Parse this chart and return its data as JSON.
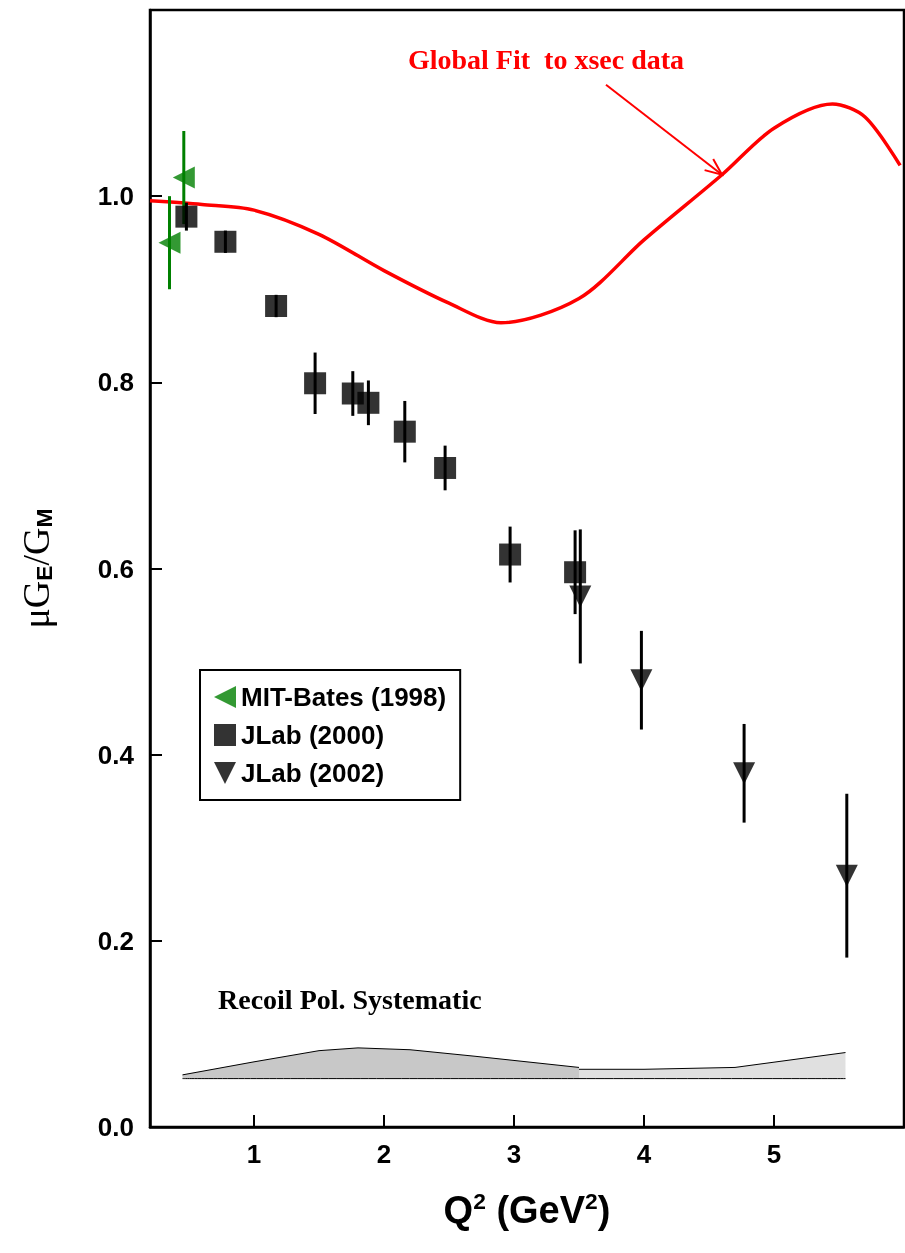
{
  "chart_data": {
    "type": "scatter",
    "xlabel": "Q$^{2}$ (GeV$^{2}$)",
    "ylabel": "μG$_{E}$/G$_{M}$",
    "xlim": [
      0.2,
      6
    ],
    "xticks": [
      1,
      2,
      3,
      4,
      5
    ],
    "ylim": [
      0,
      1.2
    ],
    "yticks": [
      {
        "value": 0,
        "label": "0.0"
      },
      {
        "value": 0.2,
        "label": "0.2"
      },
      {
        "value": 0.4,
        "label": "0.4"
      },
      {
        "value": 0.6,
        "label": "0.6"
      },
      {
        "value": 0.8,
        "label": "0.8"
      },
      {
        "value": 1,
        "label": "1.0"
      }
    ],
    "legend": "left",
    "grid": false,
    "series": [
      {
        "name": "MIT-Bates (1998)",
        "color": "#008000",
        "marker": "triangle-left",
        "x": [
          0.35,
          0.46
        ],
        "values": [
          0.95,
          1.02
        ],
        "errors": [
          0.05,
          0.05
        ]
      },
      {
        "name": "JLab (2000)",
        "color": "#000000",
        "marker": "square",
        "x": [
          0.48,
          0.78,
          1.17,
          1.47,
          1.76,
          1.88,
          2.16,
          2.47,
          2.97,
          3.47
        ],
        "values": [
          0.978,
          0.951,
          0.882,
          0.799,
          0.788,
          0.778,
          0.747,
          0.708,
          0.615,
          0.596
        ],
        "errors": [
          0.015,
          0.012,
          0.012,
          0.033,
          0.024,
          0.024,
          0.033,
          0.024,
          0.03,
          0.045
        ]
      },
      {
        "name": "JLab (2002)",
        "color": "#000000",
        "marker": "triangle-down",
        "x": [
          3.51,
          3.98,
          4.77,
          5.56
        ],
        "values": [
          0.57,
          0.48,
          0.38,
          0.27
        ],
        "errors": [
          0.072,
          0.053,
          0.053,
          0.088
        ]
      },
      {
        "type": "line",
        "color": "#ff0000",
        "marker": "none",
        "x": [
          0.2,
          0.6,
          1,
          1.5,
          2,
          2.5,
          2.9,
          3.5,
          4,
          4.6,
          5,
          5.45,
          5.7,
          5.97
        ],
        "values": [
          0.995,
          0.991,
          0.985,
          0.959,
          0.92,
          0.885,
          0.864,
          0.89,
          0.953,
          1.023,
          1.073,
          1.099,
          1.085,
          1.033
        ]
      },
      {
        "type": "area",
        "color": "#c8c8c8",
        "x": [
          0.45,
          1,
          1.5,
          1.8,
          2.2,
          2.7,
          3.5
        ],
        "values": [
          0.056,
          0.07,
          0.082,
          0.085,
          0.083,
          0.076,
          0.064
        ]
      },
      {
        "type": "area",
        "color": "#e0e0e0",
        "x": [
          3.5,
          4,
          4.7,
          5.55
        ],
        "values": [
          0.062,
          0.062,
          0.064,
          0.08
        ]
      },
      {
        "type": "line",
        "color": "#000000",
        "marker": "none",
        "x": [
          0.45,
          3.5,
          5.55
        ],
        "values": [
          0.052,
          0.052,
          0.052
        ]
      }
    ],
    "annotations": [
      {
        "text": "Global Fit  to xsec data",
        "x": 4.6,
        "y": 1.023
      },
      "Recoil Pol. Systematic"
    ]
  }
}
